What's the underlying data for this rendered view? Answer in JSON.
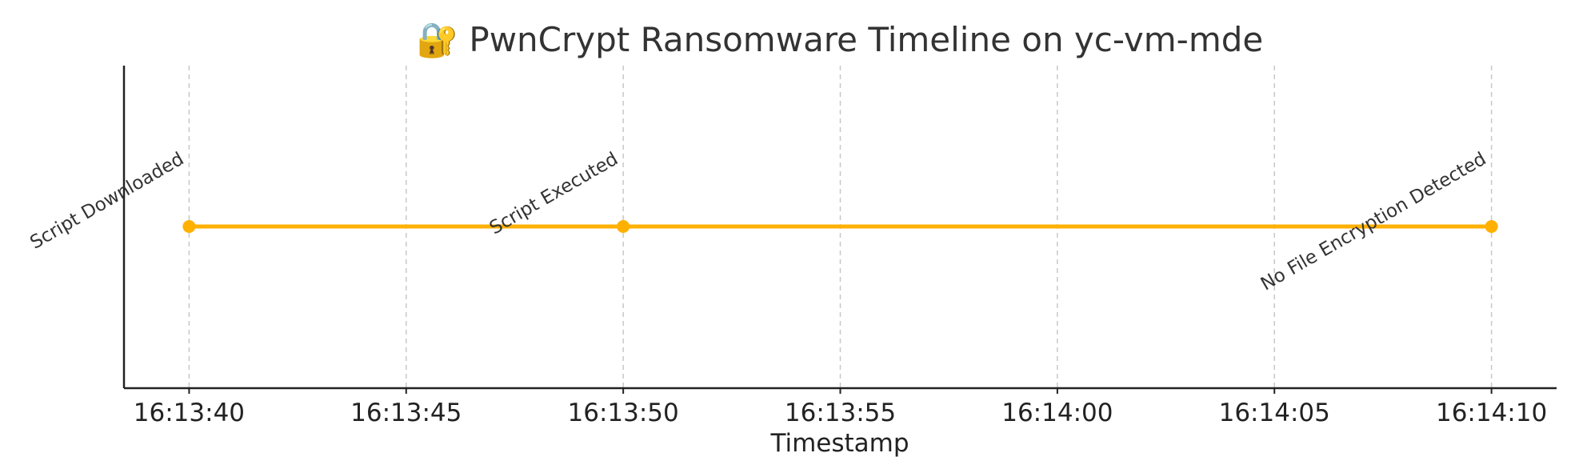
{
  "chart_data": {
    "type": "line",
    "title": "🔐 PwnCrypt Ransomware Timeline on yc-vm-mde",
    "xlabel": "Timestamp",
    "ylabel": "",
    "x_ticks": [
      "16:13:40",
      "16:13:45",
      "16:13:50",
      "16:13:55",
      "16:14:00",
      "16:14:05",
      "16:14:10"
    ],
    "xlim": [
      "16:13:38.5",
      "16:14:11.5"
    ],
    "grid": "vertical dashed",
    "series": [
      {
        "color": "#FFB000",
        "points": [
          {
            "x": "16:13:40",
            "y": 1,
            "label": "Script Downloaded"
          },
          {
            "x": "16:13:50",
            "y": 1,
            "label": "Script Executed"
          },
          {
            "x": "16:14:10",
            "y": 1,
            "label": "No File Encryption Detected"
          }
        ]
      }
    ]
  }
}
